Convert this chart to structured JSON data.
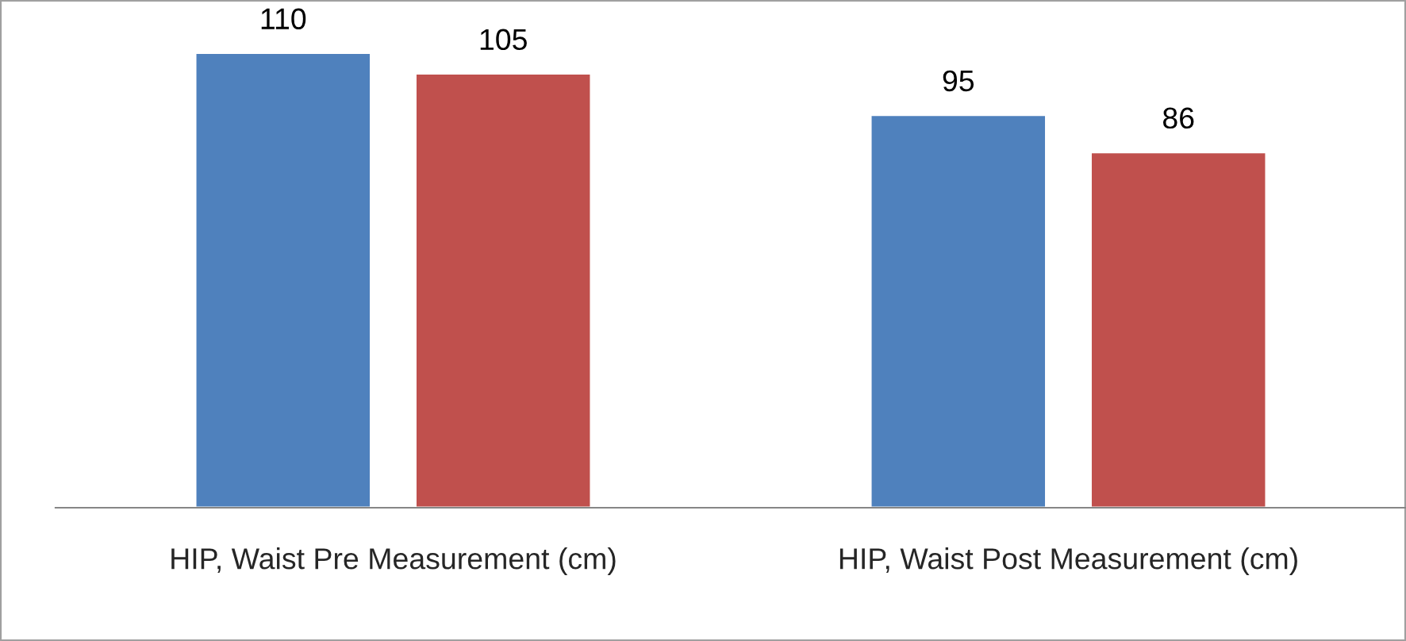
{
  "chart_data": {
    "type": "bar",
    "categories": [
      "HIP, Waist Pre Measurement (cm)",
      "HIP, Waist Post Measurement (cm)"
    ],
    "series": [
      {
        "color": "#4f81bd",
        "values": [
          110,
          95
        ]
      },
      {
        "color": "#c0504d",
        "values": [
          105,
          86
        ]
      }
    ],
    "tick_labels": "x",
    "data_labels": true,
    "grid": false,
    "legend": false
  }
}
